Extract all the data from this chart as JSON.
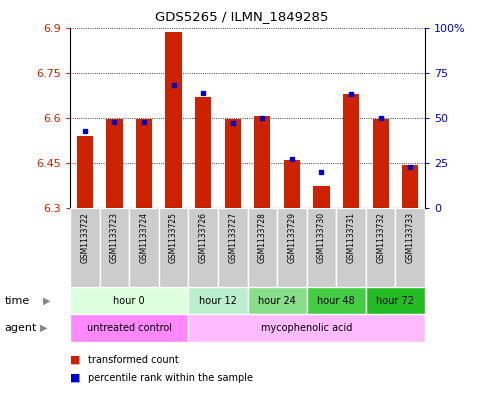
{
  "title": "GDS5265 / ILMN_1849285",
  "samples": [
    "GSM1133722",
    "GSM1133723",
    "GSM1133724",
    "GSM1133725",
    "GSM1133726",
    "GSM1133727",
    "GSM1133728",
    "GSM1133729",
    "GSM1133730",
    "GSM1133731",
    "GSM1133732",
    "GSM1133733"
  ],
  "red_values": [
    6.54,
    6.595,
    6.595,
    6.885,
    6.67,
    6.595,
    6.605,
    6.46,
    6.375,
    6.68,
    6.595,
    6.445
  ],
  "blue_values_pct": [
    43,
    48,
    48,
    68,
    64,
    47,
    50,
    27,
    20,
    63,
    50,
    23
  ],
  "ylim": [
    6.3,
    6.9
  ],
  "yticks": [
    6.3,
    6.45,
    6.6,
    6.75,
    6.9
  ],
  "ytick_labels": [
    "6.3",
    "6.45",
    "6.6",
    "6.75",
    "6.9"
  ],
  "y2ticks": [
    0,
    25,
    50,
    75,
    100
  ],
  "y2tick_labels": [
    "0",
    "25",
    "50",
    "75",
    "100%"
  ],
  "time_groups": [
    {
      "label": "hour 0",
      "start": 0,
      "end": 4
    },
    {
      "label": "hour 12",
      "start": 4,
      "end": 6
    },
    {
      "label": "hour 24",
      "start": 6,
      "end": 8
    },
    {
      "label": "hour 48",
      "start": 8,
      "end": 10
    },
    {
      "label": "hour 72",
      "start": 10,
      "end": 12
    }
  ],
  "time_colors": [
    "#ddffdd",
    "#bbeecc",
    "#88dd88",
    "#44cc44",
    "#22bb22"
  ],
  "agent_groups": [
    {
      "label": "untreated control",
      "start": 0,
      "end": 4
    },
    {
      "label": "mycophenolic acid",
      "start": 4,
      "end": 12
    }
  ],
  "agent_colors": [
    "#ff88ff",
    "#ffbbff"
  ],
  "bar_color": "#cc2200",
  "dot_color": "#0000cc",
  "base": 6.3,
  "tick_label_color_left": "#cc2200",
  "tick_label_color_right": "#0000cc",
  "background_color": "#ffffff",
  "grid_color": "#000000",
  "bar_width": 0.55,
  "sample_bg": "#cccccc"
}
